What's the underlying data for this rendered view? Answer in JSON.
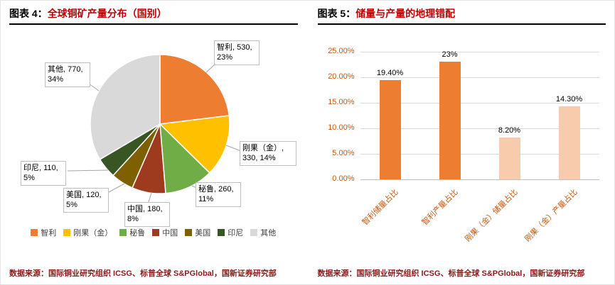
{
  "colors": {
    "title_red": "#C00000",
    "source_red": "#8B1A1A",
    "grid": "#D9D9D9",
    "axis_line": "#BFBFBF",
    "bar_axis_text": "#C55A11",
    "legend_text": "#404040"
  },
  "left_panel": {
    "title_prefix": "图表 4：",
    "title_text": "全球铜矿产量分布（国别）",
    "source": "数据来源：国际铜业研究组织 ICSG、标普全球 S&PGlobal，国新证券研究部"
  },
  "right_panel": {
    "title_prefix": "图表 5：",
    "title_text": "储量与产量的地理错配",
    "source": "数据来源：国际铜业研究组织 ICSG、标普全球 S&PGlobal，国新证券研究部"
  },
  "chart_data": [
    {
      "type": "pie",
      "title": "全球铜矿产量分布（国别）",
      "legend_position": "bottom",
      "slices": [
        {
          "label": "智利",
          "value": 530,
          "percent": "23%",
          "color": "#ED7D31",
          "callout": "智利, 530, 23%"
        },
        {
          "label": "刚果（金）",
          "value": 330,
          "percent": "14%",
          "color": "#FFC000",
          "callout": "刚果（金）, 330, 14%"
        },
        {
          "label": "秘鲁",
          "value": 260,
          "percent": "11%",
          "color": "#70AD47",
          "callout": "秘鲁, 260, 11%"
        },
        {
          "label": "中国",
          "value": 180,
          "percent": "8%",
          "color": "#9E3B1E",
          "callout": "中国, 180, 8%"
        },
        {
          "label": "美国",
          "value": 120,
          "percent": "5%",
          "color": "#7F6000",
          "callout": "美国, 120, 5%"
        },
        {
          "label": "印尼",
          "value": 110,
          "percent": "5%",
          "color": "#375623",
          "callout": "印尼, 110, 5%"
        },
        {
          "label": "其他",
          "value": 770,
          "percent": "34%",
          "color": "#D9D9D9",
          "callout": "其他, 770, 34%"
        }
      ]
    },
    {
      "type": "bar",
      "title": "储量与产量的地理错配",
      "categories": [
        "智利储量占比",
        "智利产量占比",
        "刚果（金）储量占比",
        "刚果（金）产量占比"
      ],
      "values": [
        19.4,
        23,
        8.2,
        14.3
      ],
      "data_labels": [
        "19.40%",
        "23%",
        "8.20%",
        "14.30%"
      ],
      "bar_colors": [
        "#ED7D31",
        "#ED7D31",
        "#F8CBAD",
        "#F8CBAD"
      ],
      "ylim": [
        0,
        25
      ],
      "ytick_labels": [
        "0.00%",
        "5.00%",
        "10.00%",
        "15.00%",
        "20.00%",
        "25.00%"
      ],
      "grid": true,
      "legend": "none"
    }
  ]
}
